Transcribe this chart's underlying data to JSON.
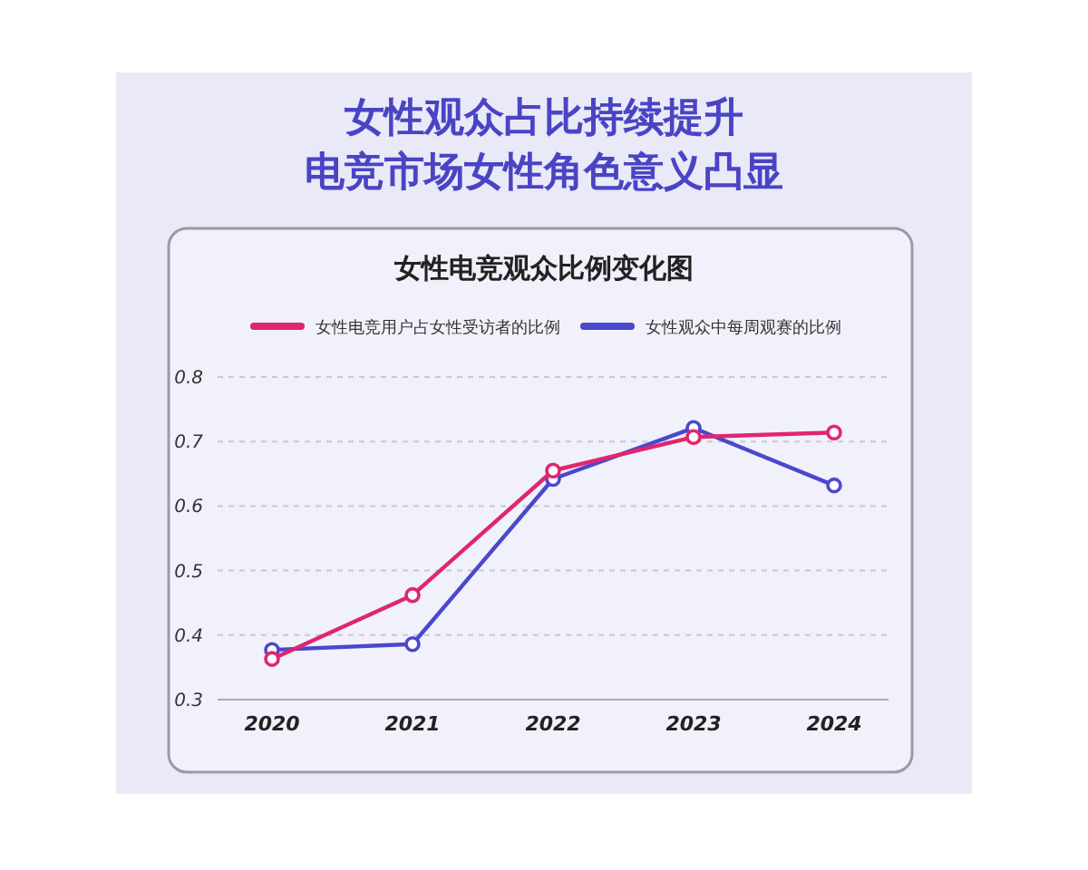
{
  "chart_data": {
    "type": "line",
    "title": "女性观众占比持续提升",
    "subtitle": "电竞市场女性角色意义凸显",
    "annotations": [
      "女性电竞观众比例变化图"
    ],
    "categories": [
      "2020",
      "2021",
      "2022",
      "2023",
      "2024"
    ],
    "series": [
      {
        "name": "女性电竞用户占女性受访者的比例",
        "color": "#e0266e",
        "values": [
          0.363,
          0.462,
          0.655,
          0.707,
          0.714
        ]
      },
      {
        "name": "女性观众中每周观赛的比例",
        "color": "#4a48cc",
        "values": [
          0.377,
          0.386,
          0.642,
          0.721,
          0.632
        ]
      }
    ],
    "ylim": [
      0.3,
      0.8
    ],
    "yticks": [
      {
        "value": 0.3,
        "label": "0.3"
      },
      {
        "value": 0.4,
        "label": "0.4"
      },
      {
        "value": 0.5,
        "label": "0.5"
      },
      {
        "value": 0.6,
        "label": "0.6"
      },
      {
        "value": 0.7,
        "label": "0.7"
      },
      {
        "value": 0.8,
        "label": "0.8"
      }
    ],
    "grid": "y",
    "legend": "top",
    "marker": "circle",
    "line_style": "solid"
  }
}
